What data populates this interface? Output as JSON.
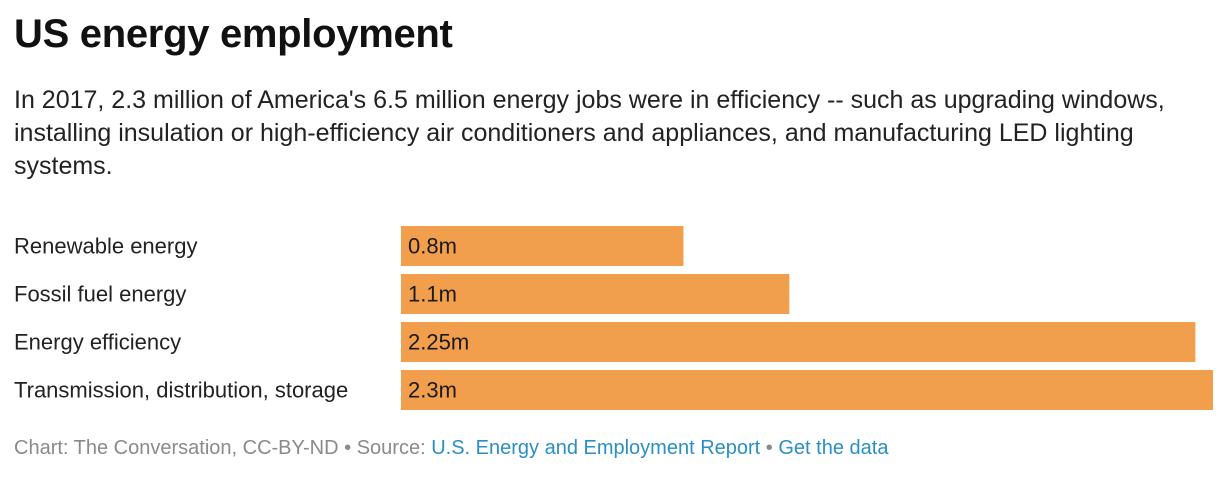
{
  "header": {
    "title": "US energy employment",
    "subtitle": "In 2017, 2.3 million of America's 6.5 million energy jobs were in efficiency -- such as upgrading windows, installing insulation or high-efficiency air conditioners and appliances, and manufacturing LED lighting systems."
  },
  "chart_data": {
    "type": "bar",
    "orientation": "horizontal",
    "title": "",
    "xlabel": "",
    "ylabel": "",
    "categories": [
      "Renewable energy",
      "Fossil fuel energy",
      "Energy efficiency",
      "Transmission, distribution, storage"
    ],
    "values": [
      0.8,
      1.1,
      2.25,
      2.3
    ],
    "labels": [
      "0.8m",
      "1.1m",
      "2.25m",
      "2.3m"
    ],
    "xlim": [
      0,
      2.3
    ],
    "grid": false,
    "bar_color": "#f29f4d"
  },
  "footer": {
    "credit": "Chart: The Conversation, CC-BY-ND",
    "sep1": " • ",
    "source_prefix": "Source: ",
    "source_link": "U.S. Energy and Employment Report",
    "sep2": " • ",
    "data_link": "Get the data"
  },
  "colors": {
    "bar": "#f29f4d",
    "link": "#2a8fc4",
    "footer_text": "#8a8a8a"
  }
}
